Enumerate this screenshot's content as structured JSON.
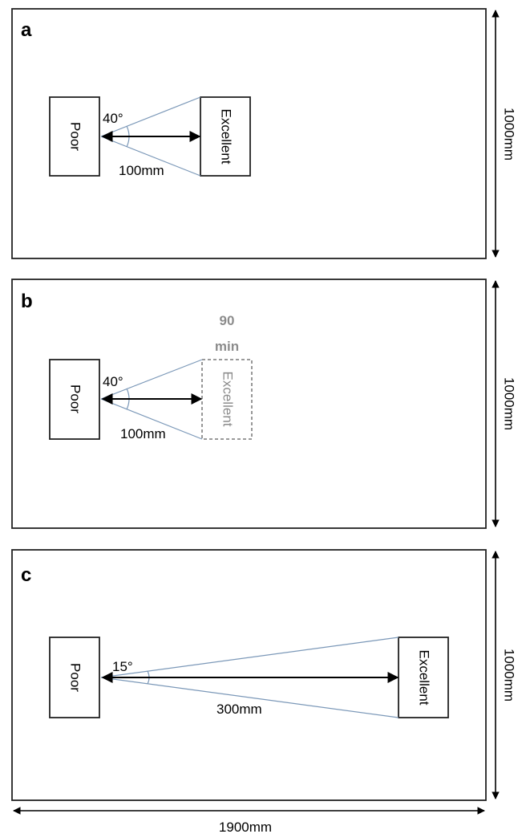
{
  "panels": [
    {
      "letter": "a",
      "left_box_label": "Poor",
      "right_box_label": "Excellent",
      "angle_label": "40°",
      "distance_label": "100mm",
      "height_label": "1000mm"
    },
    {
      "letter": "b",
      "left_box_label": "Poor",
      "right_box_label": "Excellent",
      "angle_label": "40°",
      "distance_label": "100mm",
      "height_label": "1000mm",
      "note_line1": "90",
      "note_line2": "min"
    },
    {
      "letter": "c",
      "left_box_label": "Poor",
      "right_box_label": "Excellent",
      "angle_label": "15°",
      "distance_label": "300mm",
      "height_label": "1000mm"
    }
  ],
  "width_label": "1900mm",
  "colors": {
    "ray": "#7b98b8",
    "dashed": "#8c8c8c",
    "line": "#222222"
  }
}
